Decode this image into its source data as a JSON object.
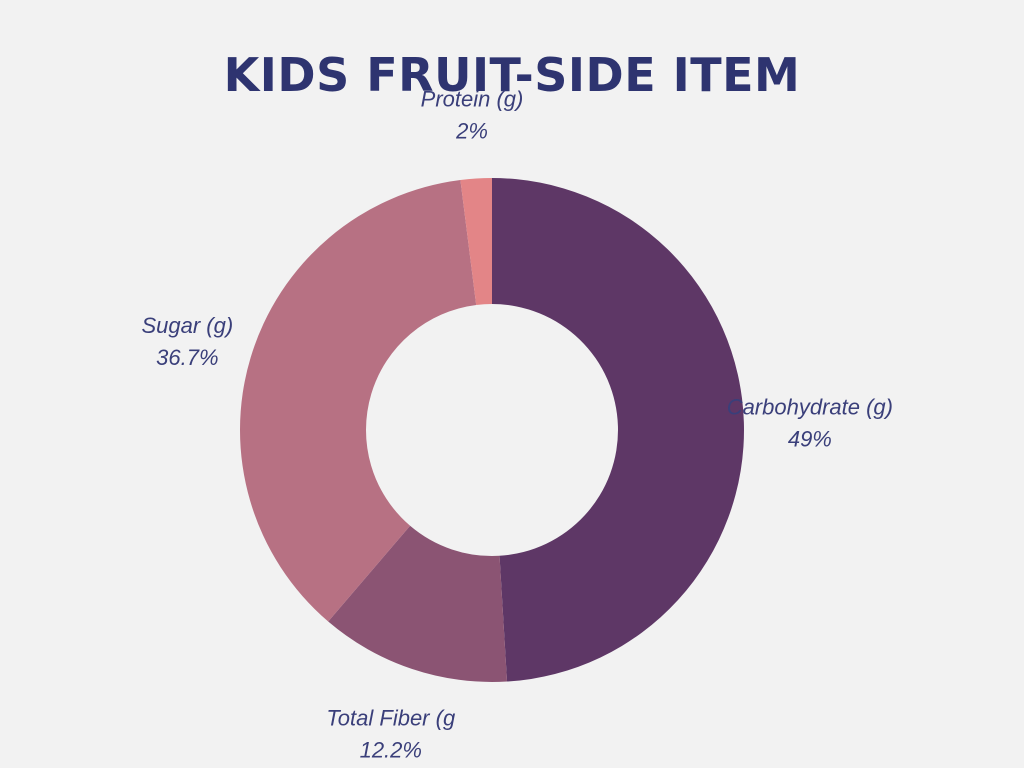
{
  "chart_data": {
    "type": "pie",
    "title": "KIDS FRUIT-SIDE ITEM",
    "donut": true,
    "slices": [
      {
        "label": "Carbohydrate (g)",
        "value": 49,
        "value_label": "49%",
        "color": "#5e3766"
      },
      {
        "label": "Total Fiber (g",
        "value": 12.2,
        "value_label": "12.2%",
        "color": "#8b5473"
      },
      {
        "label": "Sugar (g)",
        "value": 36.7,
        "value_label": "36.7%",
        "color": "#b77183"
      },
      {
        "label": "Protein (g)",
        "value": 2,
        "value_label": "2%",
        "color": "#e38587"
      }
    ],
    "start_angle": "12 o'clock",
    "direction": "clockwise"
  }
}
